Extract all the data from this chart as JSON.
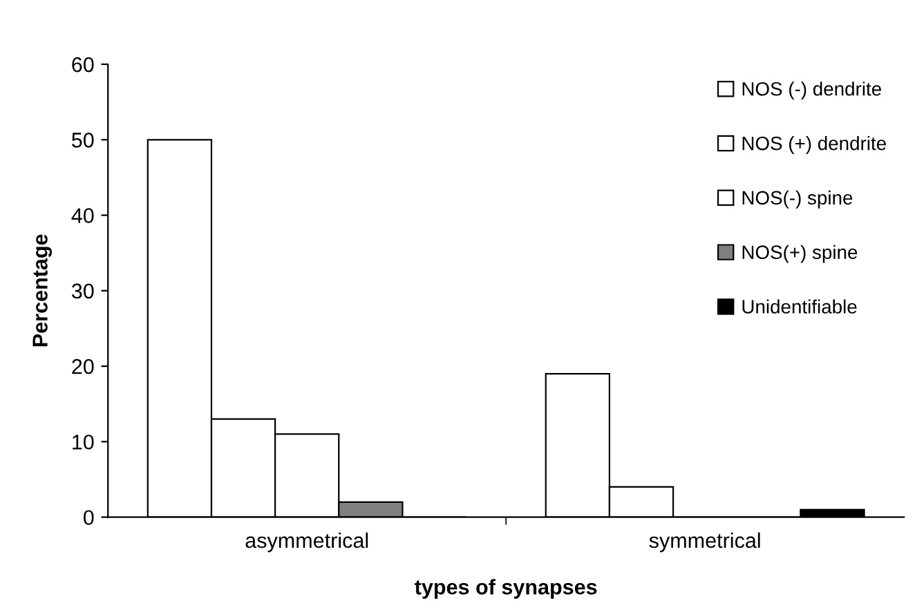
{
  "chart_data": {
    "type": "bar",
    "xlabel": "types of synapses",
    "ylabel": "Percentage",
    "categories": [
      "asymmetrical",
      "symmetrical"
    ],
    "series": [
      {
        "name": "NOS (-) dendrite",
        "color": "#ffffff",
        "values": [
          50,
          19
        ]
      },
      {
        "name": "NOS (+) dendrite",
        "color": "#ffffff",
        "values": [
          13,
          4
        ]
      },
      {
        "name": "NOS(-) spine",
        "color": "#ffffff",
        "values": [
          11,
          0
        ]
      },
      {
        "name": "NOS(+) spine",
        "color": "#808080",
        "values": [
          2,
          0
        ]
      },
      {
        "name": "Unidentifiable",
        "color": "#000000",
        "values": [
          0,
          1
        ]
      }
    ],
    "ylim": [
      0,
      60
    ],
    "yticks": [
      0,
      10,
      20,
      30,
      40,
      50,
      60
    ],
    "grid": false,
    "legend": "top right"
  }
}
